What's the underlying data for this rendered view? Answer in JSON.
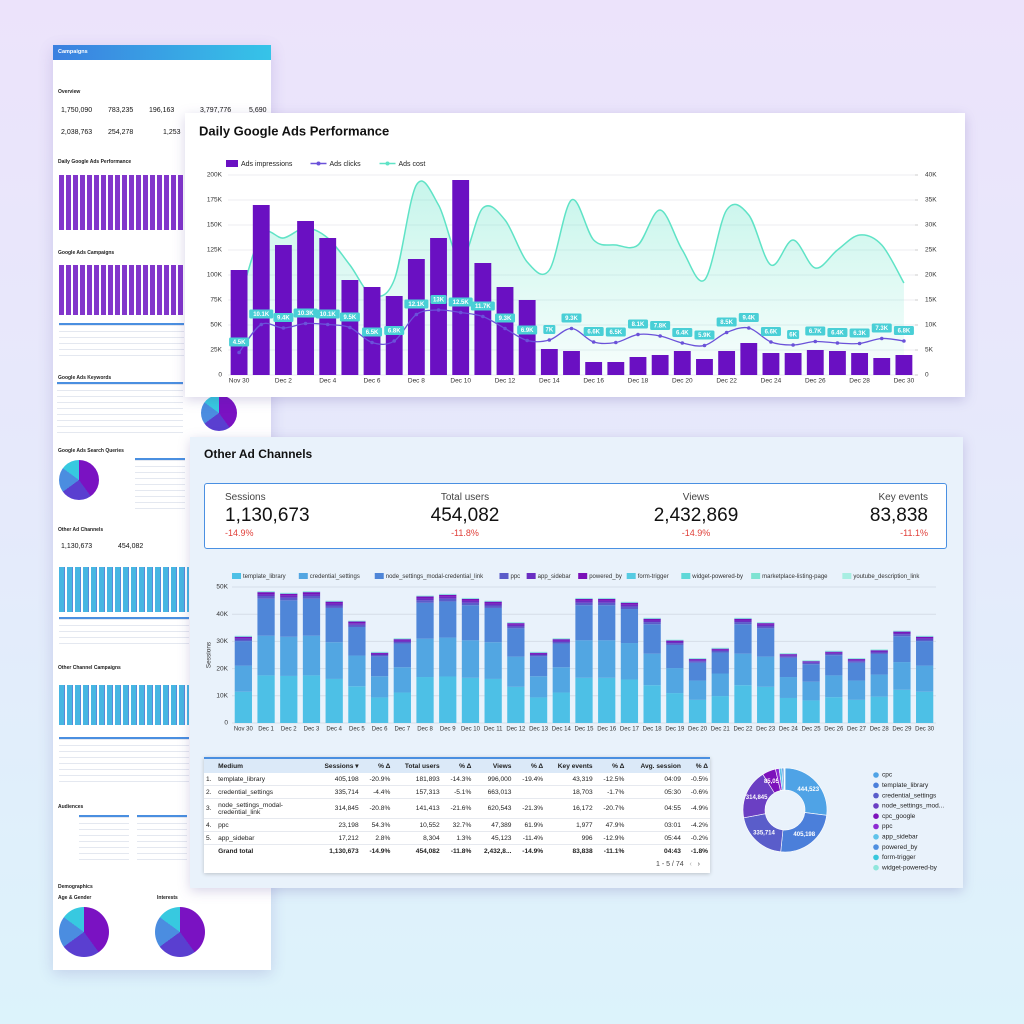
{
  "thumbnail": {
    "header": "Campaigns",
    "sections": [
      "Overview",
      "Daily Google Ads Performance",
      "Google Ads Campaigns",
      "Google Ads Keywords",
      "Google Ads Search Queries",
      "Other Ad Channels",
      "Other Channel Campaigns",
      "Audiences",
      "Demographics",
      "Age & Gender",
      "Interests"
    ],
    "values": [
      "1,750,090",
      "783,235",
      "196,163",
      "3,797,776",
      "5,690",
      "2,038,763",
      "254,278",
      "1,253",
      "1,130,673",
      "454,082"
    ]
  },
  "other_channels": {
    "title": "Other Ad Channels",
    "kpis": [
      {
        "label": "Sessions",
        "value": "1,130,673",
        "delta": "-14.9%"
      },
      {
        "label": "Total users",
        "value": "454,082",
        "delta": "-11.8%"
      },
      {
        "label": "Views",
        "value": "2,432,869",
        "delta": "-14.9%"
      },
      {
        "label": "Key events",
        "value": "83,838",
        "delta": "-11.1%"
      }
    ],
    "table": {
      "columns": [
        "Medium",
        "Sessions ▾",
        "% Δ",
        "Total users",
        "% Δ",
        "Views",
        "% Δ",
        "Key events",
        "% Δ",
        "Avg. session",
        "% Δ"
      ],
      "rows": [
        {
          "index": "1.",
          "cells": [
            "template_library",
            "405,198",
            "-20.9%",
            "181,893",
            "-14.3%",
            "996,000",
            "-19.4%",
            "43,319",
            "-12.5%",
            "04:09",
            "-0.5%"
          ]
        },
        {
          "index": "2.",
          "cells": [
            "credential_settings",
            "335,714",
            "-4.4%",
            "157,313",
            "-5.1%",
            "663,013",
            null,
            "18,703",
            "-1.7%",
            "05:30",
            "-0.6%"
          ]
        },
        {
          "index": "3.",
          "cells": [
            "node_settings_modal-credential_link",
            "314,845",
            "-20.8%",
            "141,413",
            "-21.6%",
            "620,543",
            "-21.3%",
            "16,172",
            "-20.7%",
            "04:55",
            "-4.9%"
          ]
        },
        {
          "index": "4.",
          "cells": [
            "ppc",
            "23,198",
            "54.3%",
            "10,552",
            "32.7%",
            "47,389",
            "61.9%",
            "1,977",
            "47.9%",
            "03:01",
            "-4.2%"
          ]
        },
        {
          "index": "5.",
          "cells": [
            "app_sidebar",
            "17,212",
            "2.8%",
            "8,304",
            "1.3%",
            "45,123",
            "-11.4%",
            "996",
            "-12.9%",
            "05:44",
            "-0.2%"
          ]
        }
      ],
      "total": [
        "Grand total",
        "1,130,673",
        "-14.9%",
        "454,082",
        "-11.8%",
        "2,432,8...",
        "-14.9%",
        "83,838",
        "-11.1%",
        "04:43",
        "-1.8%"
      ],
      "pagination": "1 - 5 / 74"
    }
  },
  "chart_data": [
    {
      "type": "combo",
      "title": "Daily Google Ads Performance",
      "legend": "top-left",
      "grid": true,
      "categories": [
        "Nov 30",
        null,
        "Dec 2",
        null,
        "Dec 4",
        null,
        "Dec 6",
        null,
        "Dec 8",
        null,
        "Dec 10",
        null,
        "Dec 12",
        null,
        "Dec 14",
        null,
        "Dec 16",
        null,
        "Dec 18",
        null,
        "Dec 20",
        null,
        "Dec 22",
        null,
        "Dec 24",
        null,
        "Dec 26",
        null,
        "Dec 28",
        null,
        "Dec 30"
      ],
      "ylim": [
        0,
        200000
      ],
      "yticks": [
        0,
        {
          "value": 25000,
          "label": "25K"
        },
        {
          "value": 50000,
          "label": "50K"
        },
        {
          "value": 75000,
          "label": "75K"
        },
        {
          "value": 100000,
          "label": "100K"
        },
        {
          "value": 125000,
          "label": "125K"
        },
        {
          "value": 150000,
          "label": "150K"
        },
        {
          "value": 175000,
          "label": "175K"
        },
        {
          "value": 200000,
          "label": "200K"
        }
      ],
      "y2lim": [
        0,
        40000
      ],
      "y2ticks": [
        0,
        {
          "value": 5000,
          "label": "5K"
        },
        {
          "value": 10000,
          "label": "10K"
        },
        {
          "value": 15000,
          "label": "15K"
        },
        {
          "value": 20000,
          "label": "20K"
        },
        {
          "value": 25000,
          "label": "25K"
        },
        {
          "value": 30000,
          "label": "30K"
        },
        {
          "value": 35000,
          "label": "35K"
        },
        {
          "value": 40000,
          "label": "40K"
        }
      ],
      "series": [
        {
          "name": "Ads impressions",
          "type": "bar",
          "color": "#6a10c2",
          "values": [
            105000,
            170000,
            130000,
            154000,
            137000,
            95000,
            88000,
            79000,
            116000,
            137000,
            195000,
            112000,
            88000,
            75000,
            26000,
            24000,
            13000,
            13000,
            18000,
            20000,
            24000,
            16000,
            24000,
            32000,
            22000,
            22000,
            25000,
            24000,
            22000,
            17000,
            20000
          ]
        },
        {
          "name": "Ads clicks",
          "type": "line",
          "axis": "y2",
          "color": "#6b52d9",
          "values": [
            4500,
            10100,
            9400,
            10300,
            10100,
            9500,
            6500,
            6800,
            12100,
            13000,
            12500,
            11700,
            9300,
            6900,
            7000,
            9300,
            6600,
            6500,
            8100,
            7800,
            6400,
            5900,
            8500,
            9400,
            6600,
            6000,
            6700,
            6400,
            6300,
            7300,
            6800
          ],
          "value_labels": [
            "4.5K",
            "10.1K",
            "9.4K",
            "10.3K",
            "10.1K",
            "9.5K",
            "6.5K",
            "6.8K",
            "12.1K",
            "13K",
            "12.5K",
            "11.7K",
            "9.3K",
            "6.9K",
            "7K",
            "9.3K",
            "6.6K",
            "6.5K",
            "8.1K",
            "7.8K",
            "6.4K",
            "5.9K",
            "8.5K",
            "9.4K",
            "6.6K",
            "6K",
            "6.7K",
            "6.4K",
            "6.3K",
            "7.3K",
            "6.8K"
          ]
        },
        {
          "name": "Ads cost",
          "type": "area",
          "axis": "y2",
          "color": "#5fe3c6",
          "values": [
            14400,
            28000,
            27400,
            29400,
            27400,
            22000,
            16000,
            19000,
            38000,
            34000,
            23000,
            33400,
            31000,
            22600,
            21000,
            35000,
            27000,
            26000,
            26000,
            33000,
            25000,
            19000,
            33000,
            32000,
            22000,
            27000,
            21400,
            25000,
            28000,
            26000,
            18400
          ]
        }
      ]
    },
    {
      "type": "stacked-bar",
      "y_label": "Sessions",
      "ylim": [
        0,
        50000
      ],
      "yticks": [
        0,
        {
          "value": 10000,
          "label": "10K"
        },
        {
          "value": 20000,
          "label": "20K"
        },
        {
          "value": 30000,
          "label": "30K"
        },
        {
          "value": 40000,
          "label": "40K"
        },
        {
          "value": 50000,
          "label": "50K"
        }
      ],
      "grid": true,
      "categories": [
        "Nov 30",
        "Dec 1",
        "Dec 2",
        "Dec 3",
        "Dec 4",
        "Dec 5",
        "Dec 6",
        "Dec 7",
        "Dec 8",
        "Dec 9",
        "Dec 10",
        "Dec 11",
        "Dec 12",
        "Dec 13",
        "Dec 14",
        "Dec 15",
        "Dec 16",
        "Dec 17",
        "Dec 18",
        "Dec 19",
        "Dec 20",
        "Dec 21",
        "Dec 22",
        "Dec 23",
        "Dec 24",
        "Dec 25",
        "Dec 26",
        "Dec 27",
        "Dec 28",
        "Dec 29",
        "Dec 30"
      ],
      "series": [
        {
          "name": "template_library",
          "color": "#4dc0e6",
          "values": [
            11500,
            17500,
            17300,
            17500,
            16200,
            13500,
            9400,
            11200,
            16900,
            17100,
            16600,
            16200,
            13300,
            9400,
            11200,
            16600,
            16600,
            16000,
            13900,
            11000,
            8500,
            9900,
            13900,
            13300,
            9200,
            8300,
            9500,
            8500,
            9700,
            12200,
            11500
          ]
        },
        {
          "name": "credential_settings",
          "color": "#52a6e2",
          "values": [
            9600,
            14600,
            14400,
            14600,
            13500,
            11300,
            7800,
            9300,
            14100,
            14300,
            13800,
            13500,
            11100,
            7800,
            9300,
            13800,
            13800,
            13400,
            11600,
            9200,
            7100,
            8300,
            11600,
            11100,
            7700,
            6900,
            8000,
            7100,
            8100,
            10200,
            9600
          ]
        },
        {
          "name": "node_settings_modal-credential_link",
          "color": "#4f86d8",
          "values": [
            9000,
            13600,
            13400,
            13600,
            12600,
            10500,
            7300,
            8700,
            13200,
            13300,
            12900,
            12600,
            10400,
            7300,
            8700,
            12900,
            12900,
            12500,
            10800,
            8500,
            6600,
            7700,
            10800,
            10400,
            7100,
            6400,
            7400,
            6600,
            7600,
            9500,
            9000
          ]
        },
        {
          "name": "ppc",
          "color": "#5b5cc9",
          "values": [
            600,
            1000,
            1000,
            1000,
            900,
            800,
            500,
            600,
            900,
            1000,
            900,
            900,
            700,
            500,
            600,
            900,
            900,
            900,
            800,
            600,
            500,
            600,
            800,
            700,
            500,
            500,
            500,
            500,
            500,
            700,
            600
          ]
        },
        {
          "name": "app_sidebar",
          "color": "#6a2ec2",
          "values": [
            500,
            700,
            700,
            700,
            700,
            600,
            400,
            500,
            700,
            700,
            700,
            700,
            600,
            400,
            500,
            700,
            700,
            700,
            600,
            500,
            400,
            400,
            600,
            600,
            400,
            300,
            400,
            400,
            400,
            500,
            500
          ]
        },
        {
          "name": "powered_by",
          "color": "#7a10b8",
          "values": [
            500,
            700,
            700,
            700,
            700,
            600,
            400,
            500,
            700,
            700,
            700,
            700,
            600,
            400,
            500,
            700,
            700,
            700,
            600,
            500,
            400,
            400,
            600,
            600,
            400,
            300,
            400,
            400,
            400,
            500,
            500
          ]
        },
        {
          "name": "form-trigger",
          "color": "#56cbe2",
          "values": [
            100,
            100,
            100,
            100,
            100,
            100,
            100,
            100,
            100,
            100,
            100,
            100,
            100,
            100,
            100,
            100,
            100,
            100,
            100,
            100,
            100,
            100,
            100,
            100,
            100,
            100,
            100,
            100,
            100,
            100,
            100
          ]
        },
        {
          "name": "widget-powered-by",
          "color": "#5fd8d8",
          "values": [
            100,
            100,
            100,
            100,
            100,
            100,
            100,
            100,
            100,
            100,
            100,
            100,
            100,
            100,
            100,
            100,
            100,
            100,
            100,
            100,
            100,
            100,
            100,
            100,
            100,
            100,
            100,
            100,
            100,
            100,
            100
          ]
        },
        {
          "name": "marketplace-listing-page",
          "color": "#7fe3d2",
          "values": [
            100,
            100,
            100,
            100,
            100,
            100,
            100,
            100,
            100,
            100,
            100,
            100,
            100,
            100,
            100,
            100,
            100,
            100,
            100,
            100,
            100,
            100,
            100,
            100,
            100,
            100,
            100,
            100,
            100,
            100,
            100
          ]
        },
        {
          "name": "youtube_description_link",
          "color": "#a8eee2",
          "values": [
            100,
            100,
            100,
            100,
            100,
            100,
            100,
            100,
            100,
            100,
            100,
            100,
            100,
            100,
            100,
            100,
            100,
            100,
            100,
            100,
            100,
            100,
            100,
            100,
            100,
            100,
            100,
            100,
            100,
            100,
            100
          ]
        }
      ]
    },
    {
      "type": "donut",
      "legend": "right",
      "categories": [
        "cpc",
        "template_library",
        "credential_settings",
        "node_settings_mod...",
        "cpc_google",
        "ppc",
        "app_sidebar",
        "powered_by",
        "form-trigger",
        "widget-powered-by"
      ],
      "values": [
        444523,
        405198,
        335714,
        314845,
        85054,
        23198,
        17212,
        12000,
        5000,
        3000
      ],
      "value_labels": [
        "444,523",
        "405,198",
        "335,714",
        "314,845",
        "85,054",
        null,
        null,
        null,
        null,
        null
      ],
      "colors": [
        "#4fa3e6",
        "#4b7fda",
        "#5a5dca",
        "#6b3fc3",
        "#7d12bb",
        "#8e2bd3",
        "#5fc3ea",
        "#4f8fe0",
        "#38c7dc",
        "#8fe6dc"
      ]
    }
  ]
}
